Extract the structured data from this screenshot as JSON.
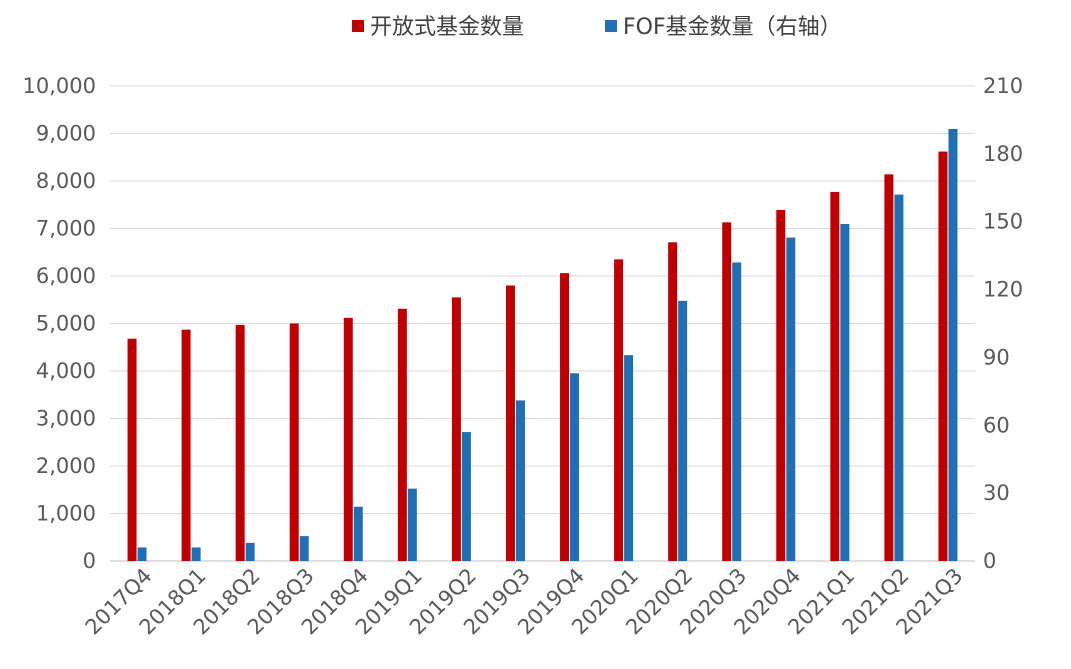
{
  "chart_data": {
    "type": "bar",
    "categories": [
      "2017Q4",
      "2018Q1",
      "2018Q2",
      "2018Q3",
      "2018Q4",
      "2019Q1",
      "2019Q2",
      "2019Q3",
      "2019Q4",
      "2020Q1",
      "2020Q2",
      "2020Q3",
      "2020Q4",
      "2021Q1",
      "2021Q2",
      "2021Q3"
    ],
    "series": [
      {
        "name": "开放式基金数量",
        "axis": "left",
        "color": "#c00000",
        "values": [
          4680,
          4870,
          4970,
          5000,
          5120,
          5310,
          5550,
          5800,
          6060,
          6350,
          6710,
          7130,
          7390,
          7770,
          8140,
          8620
        ]
      },
      {
        "name": "FOF基金数量（右轴）",
        "axis": "right",
        "color": "#1f6fb4",
        "values": [
          6,
          6,
          8,
          11,
          24,
          32,
          57,
          71,
          83,
          91,
          115,
          132,
          143,
          149,
          162,
          191
        ]
      }
    ],
    "y_left": {
      "min": 0,
      "max": 10000,
      "ticks": [
        "0",
        "1,000",
        "2,000",
        "3,000",
        "4,000",
        "5,000",
        "6,000",
        "7,000",
        "8,000",
        "9,000",
        "10,000"
      ]
    },
    "y_right": {
      "min": 0,
      "max": 210,
      "ticks": [
        "0",
        "30",
        "60",
        "90",
        "120",
        "150",
        "180",
        "210"
      ]
    },
    "grid": true,
    "legend": "top-center"
  }
}
